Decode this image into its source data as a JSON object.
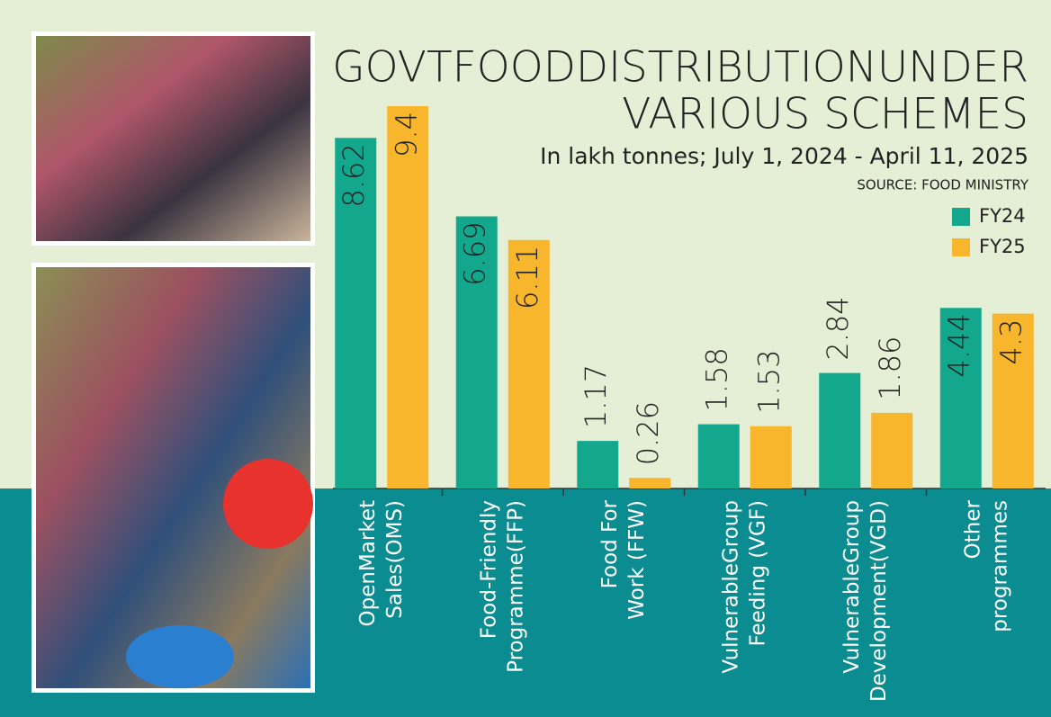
{
  "chart_data": {
    "type": "bar",
    "title": [
      "GOVTFOODDISTRIBUTIONUNDER",
      "VARIOUS SCHEMES"
    ],
    "subtitle": "In lakh tonnes; July 1, 2024 - April 11, 2025",
    "source": "SOURCE: FOOD MINISTRY",
    "categories": [
      [
        "OpenMarket",
        "Sales(OMS)"
      ],
      [
        "Food-Friendly",
        "Programme(FFP)"
      ],
      [
        "Food For",
        "Work (FFW)"
      ],
      [
        "VulnerableGroup",
        "Feeding (VGF)"
      ],
      [
        "VulnerableGroup",
        "Development(VGD)"
      ],
      [
        "Other",
        "programmes"
      ]
    ],
    "series": [
      {
        "name": "FY24",
        "color": "#13a88e",
        "values": [
          8.62,
          6.69,
          1.17,
          1.58,
          2.84,
          4.44
        ]
      },
      {
        "name": "FY25",
        "color": "#f8b62c",
        "values": [
          9.4,
          6.11,
          0.26,
          1.53,
          1.86,
          4.3
        ]
      }
    ]
  }
}
